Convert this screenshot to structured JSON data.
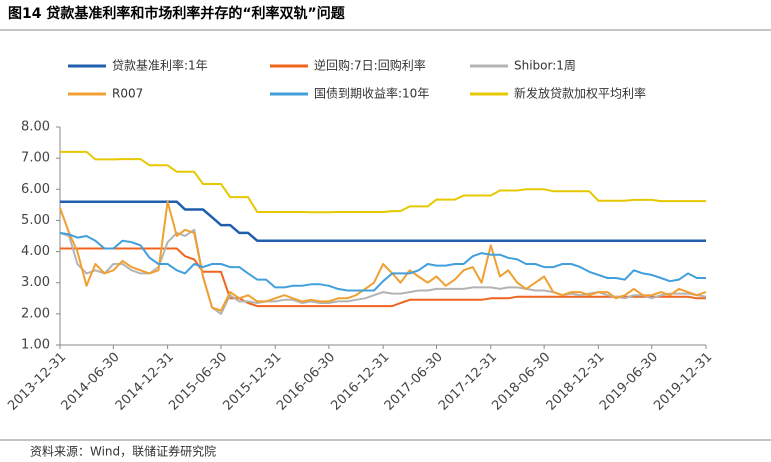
{
  "chart_data": {
    "type": "line",
    "title": "图14    贷款基准利率和市场利率并存的“利率双轨”问题",
    "source": "资料来源：Wind，联储证券研究院",
    "x": [
      "2013-12-31",
      "2014-01-31",
      "2014-02-28",
      "2014-03-31",
      "2014-04-30",
      "2014-05-31",
      "2014-06-30",
      "2014-07-31",
      "2014-08-31",
      "2014-09-30",
      "2014-10-31",
      "2014-11-30",
      "2014-12-31",
      "2015-01-31",
      "2015-02-28",
      "2015-03-31",
      "2015-04-30",
      "2015-05-31",
      "2015-06-30",
      "2015-07-31",
      "2015-08-31",
      "2015-09-30",
      "2015-10-31",
      "2015-11-30",
      "2015-12-31",
      "2016-01-31",
      "2016-02-29",
      "2016-03-31",
      "2016-04-30",
      "2016-05-31",
      "2016-06-30",
      "2016-07-31",
      "2016-08-31",
      "2016-09-30",
      "2016-10-31",
      "2016-11-30",
      "2016-12-31",
      "2017-01-31",
      "2017-02-28",
      "2017-03-31",
      "2017-04-30",
      "2017-05-31",
      "2017-06-30",
      "2017-07-31",
      "2017-08-31",
      "2017-09-30",
      "2017-10-31",
      "2017-11-30",
      "2017-12-31",
      "2018-01-31",
      "2018-02-28",
      "2018-03-31",
      "2018-04-30",
      "2018-05-31",
      "2018-06-30",
      "2018-07-31",
      "2018-08-31",
      "2018-09-30",
      "2018-10-31",
      "2018-11-30",
      "2018-12-31",
      "2019-01-31",
      "2019-02-28",
      "2019-03-31",
      "2019-04-30",
      "2019-05-31",
      "2019-06-30",
      "2019-07-31",
      "2019-08-31",
      "2019-09-30",
      "2019-10-31",
      "2019-11-30",
      "2019-12-31"
    ],
    "xlim": [
      "2013-12-31",
      "2019-12-31"
    ],
    "xticks": [
      "2013-12-31",
      "2014-06-30",
      "2014-12-31",
      "2015-06-30",
      "2015-12-31",
      "2016-06-30",
      "2016-12-31",
      "2017-06-30",
      "2017-12-31",
      "2018-06-30",
      "2018-12-31",
      "2019-06-30",
      "2019-12-31"
    ],
    "ylim": [
      1,
      8
    ],
    "yticks": [
      {
        "value": 1,
        "label": "1.00"
      },
      {
        "value": 2,
        "label": "2.00"
      },
      {
        "value": 3,
        "label": "3.00"
      },
      {
        "value": 4,
        "label": "4.00"
      },
      {
        "value": 5,
        "label": "5.00"
      },
      {
        "value": 6,
        "label": "6.00"
      },
      {
        "value": 7,
        "label": "7.00"
      },
      {
        "value": 8,
        "label": "8.00"
      }
    ],
    "series": [
      {
        "name": "贷款基准利率:1年",
        "color": "#1f5fae",
        "values": [
          5.6,
          5.6,
          5.6,
          5.6,
          5.6,
          5.6,
          5.6,
          5.6,
          5.6,
          5.6,
          5.6,
          5.6,
          5.6,
          5.6,
          5.35,
          5.35,
          5.35,
          5.1,
          4.85,
          4.85,
          4.6,
          4.6,
          4.35,
          4.35,
          4.35,
          4.35,
          4.35,
          4.35,
          4.35,
          4.35,
          4.35,
          4.35,
          4.35,
          4.35,
          4.35,
          4.35,
          4.35,
          4.35,
          4.35,
          4.35,
          4.35,
          4.35,
          4.35,
          4.35,
          4.35,
          4.35,
          4.35,
          4.35,
          4.35,
          4.35,
          4.35,
          4.35,
          4.35,
          4.35,
          4.35,
          4.35,
          4.35,
          4.35,
          4.35,
          4.35,
          4.35,
          4.35,
          4.35,
          4.35,
          4.35,
          4.35,
          4.35,
          4.35,
          4.35,
          4.35,
          4.35,
          4.35,
          4.35
        ]
      },
      {
        "name": "逆回购:7日:回购利率",
        "color": "#f0641e",
        "values": [
          4.1,
          4.1,
          4.1,
          4.1,
          4.1,
          4.1,
          4.1,
          4.1,
          4.1,
          4.1,
          4.1,
          4.1,
          4.1,
          4.1,
          3.85,
          3.75,
          3.35,
          3.35,
          3.35,
          2.5,
          2.5,
          2.35,
          2.25,
          2.25,
          2.25,
          2.25,
          2.25,
          2.25,
          2.25,
          2.25,
          2.25,
          2.25,
          2.25,
          2.25,
          2.25,
          2.25,
          2.25,
          2.25,
          2.35,
          2.45,
          2.45,
          2.45,
          2.45,
          2.45,
          2.45,
          2.45,
          2.45,
          2.45,
          2.5,
          2.5,
          2.5,
          2.55,
          2.55,
          2.55,
          2.55,
          2.55,
          2.55,
          2.55,
          2.55,
          2.55,
          2.55,
          2.55,
          2.55,
          2.55,
          2.55,
          2.55,
          2.55,
          2.55,
          2.55,
          2.55,
          2.55,
          2.5,
          2.5
        ]
      },
      {
        "name": "Shibor:1周",
        "color": "#b4b4b4",
        "values": [
          4.6,
          4.5,
          3.6,
          3.3,
          3.4,
          3.3,
          3.6,
          3.6,
          3.4,
          3.3,
          3.3,
          3.5,
          4.3,
          4.6,
          4.5,
          4.7,
          3.2,
          2.2,
          2.0,
          2.6,
          2.4,
          2.4,
          2.35,
          2.4,
          2.4,
          2.45,
          2.45,
          2.35,
          2.4,
          2.35,
          2.35,
          2.4,
          2.4,
          2.45,
          2.5,
          2.6,
          2.7,
          2.65,
          2.65,
          2.7,
          2.75,
          2.75,
          2.8,
          2.8,
          2.8,
          2.8,
          2.85,
          2.85,
          2.85,
          2.8,
          2.85,
          2.85,
          2.8,
          2.75,
          2.75,
          2.7,
          2.6,
          2.65,
          2.6,
          2.65,
          2.7,
          2.6,
          2.55,
          2.5,
          2.6,
          2.6,
          2.5,
          2.6,
          2.65,
          2.65,
          2.65,
          2.6,
          2.55
        ]
      },
      {
        "name": "R007",
        "color": "#f0a030",
        "values": [
          5.4,
          4.6,
          4.0,
          2.9,
          3.6,
          3.3,
          3.4,
          3.7,
          3.5,
          3.4,
          3.3,
          3.4,
          5.6,
          4.5,
          4.7,
          4.6,
          3.2,
          2.2,
          2.1,
          2.7,
          2.5,
          2.6,
          2.4,
          2.4,
          2.5,
          2.6,
          2.5,
          2.4,
          2.45,
          2.4,
          2.4,
          2.5,
          2.5,
          2.6,
          2.8,
          3.0,
          3.6,
          3.3,
          3.0,
          3.4,
          3.2,
          3.0,
          3.2,
          2.9,
          3.1,
          3.4,
          3.5,
          3.0,
          4.2,
          3.2,
          3.4,
          3.0,
          2.8,
          3.0,
          3.2,
          2.7,
          2.6,
          2.7,
          2.7,
          2.6,
          2.7,
          2.7,
          2.5,
          2.6,
          2.8,
          2.6,
          2.6,
          2.7,
          2.6,
          2.8,
          2.7,
          2.6,
          2.7
        ]
      },
      {
        "name": "国债到期收益率:10年",
        "color": "#41a0dc",
        "values": [
          4.6,
          4.55,
          4.45,
          4.5,
          4.35,
          4.1,
          4.1,
          4.35,
          4.3,
          4.2,
          3.8,
          3.6,
          3.6,
          3.4,
          3.3,
          3.6,
          3.5,
          3.6,
          3.6,
          3.5,
          3.5,
          3.3,
          3.1,
          3.1,
          2.85,
          2.85,
          2.9,
          2.9,
          2.95,
          2.95,
          2.9,
          2.8,
          2.75,
          2.75,
          2.75,
          2.75,
          3.05,
          3.3,
          3.3,
          3.3,
          3.4,
          3.6,
          3.55,
          3.55,
          3.6,
          3.6,
          3.85,
          3.95,
          3.9,
          3.9,
          3.8,
          3.75,
          3.6,
          3.6,
          3.5,
          3.5,
          3.6,
          3.6,
          3.5,
          3.35,
          3.25,
          3.15,
          3.15,
          3.1,
          3.4,
          3.3,
          3.25,
          3.15,
          3.05,
          3.1,
          3.3,
          3.15,
          3.15
        ]
      },
      {
        "name": "新发放贷款加权平均利率",
        "color": "#e6c800",
        "values": [
          7.2,
          7.2,
          7.2,
          7.2,
          6.96,
          6.96,
          6.96,
          6.97,
          6.97,
          6.97,
          6.77,
          6.77,
          6.77,
          6.56,
          6.56,
          6.56,
          6.17,
          6.17,
          6.17,
          5.75,
          5.75,
          5.75,
          5.27,
          5.27,
          5.27,
          5.27,
          5.27,
          5.27,
          5.26,
          5.26,
          5.26,
          5.27,
          5.27,
          5.27,
          5.27,
          5.27,
          5.27,
          5.3,
          5.3,
          5.45,
          5.45,
          5.45,
          5.67,
          5.67,
          5.67,
          5.8,
          5.8,
          5.8,
          5.8,
          5.96,
          5.96,
          5.96,
          6.0,
          6.0,
          6.0,
          5.94,
          5.94,
          5.94,
          5.94,
          5.94,
          5.63,
          5.63,
          5.63,
          5.63,
          5.66,
          5.66,
          5.66,
          5.62,
          5.62,
          5.62,
          5.62,
          5.62,
          5.62
        ]
      }
    ]
  }
}
